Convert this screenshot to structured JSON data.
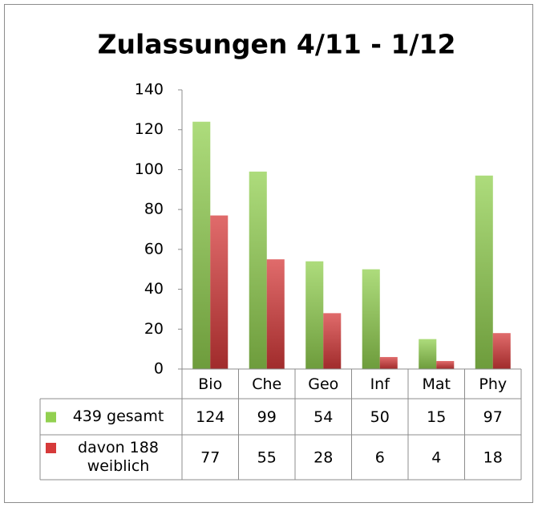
{
  "chart_data": {
    "type": "bar",
    "title": "Zulassungen 4/11 - 1/12",
    "categories": [
      "Bio",
      "Che",
      "Geo",
      "Inf",
      "Mat",
      "Phy"
    ],
    "series": [
      {
        "name": "439 gesamt",
        "color": "#92d050",
        "values": [
          124,
          99,
          54,
          50,
          15,
          97
        ]
      },
      {
        "name": "davon 188 weiblich",
        "color": "#d63a3a",
        "values": [
          77,
          55,
          28,
          6,
          4,
          18
        ]
      }
    ],
    "ylim": [
      0,
      140
    ],
    "yticks": [
      0,
      20,
      40,
      60,
      80,
      100,
      120,
      140
    ],
    "grid": false,
    "data_table": true
  }
}
